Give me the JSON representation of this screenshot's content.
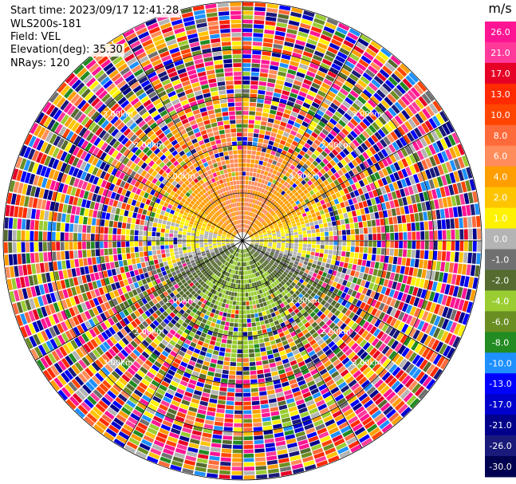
{
  "header": {
    "start_time": "Start time: 2023/09/17 12:41:28",
    "instrument": "WLS200s-181",
    "field": "Field: VEL",
    "elevation": "Elevation(deg): 35.30",
    "nrays": "NRays: 120"
  },
  "chart_data": {
    "type": "heatmap",
    "projection": "polar-ppi",
    "field": "VEL",
    "units": "m/s",
    "n_rays": 120,
    "range_ring_labels": [
      "1.00km",
      "2.00km",
      "3.00km"
    ],
    "colorbar": {
      "unit_label": "m/s",
      "ticks": [
        "26.0",
        "21.0",
        "17.0",
        "13.0",
        "10.0",
        "8.0",
        "6.0",
        "4.0",
        "2.0",
        "1.0",
        "0.0",
        "-1.0",
        "-2.0",
        "-4.0",
        "-6.0",
        "-8.0",
        "-10.0",
        "-13.0",
        "-17.0",
        "-21.0",
        "-26.0",
        "-30.0"
      ],
      "colors": [
        "#ff1493",
        "#ff3a9a",
        "#e60026",
        "#ff2a00",
        "#ff4500",
        "#ff6a3a",
        "#ff8c5a",
        "#ff9e00",
        "#ffc400",
        "#fff200",
        "#b4b4b4",
        "#707070",
        "#556b2f",
        "#9acd32",
        "#6b8e23",
        "#228b22",
        "#1e90ff",
        "#0000ff",
        "#0000cd",
        "#00008b",
        "#1a1a7a",
        "#000050"
      ]
    },
    "flow_pattern": {
      "positive_sector": "north (yellow/orange, 2 to 6 m/s)",
      "negative_sector": "south (green, -2 to -6 m/s)",
      "near_zero_band": "west to east (grey)",
      "outer_region": "noisy multicolor"
    }
  }
}
